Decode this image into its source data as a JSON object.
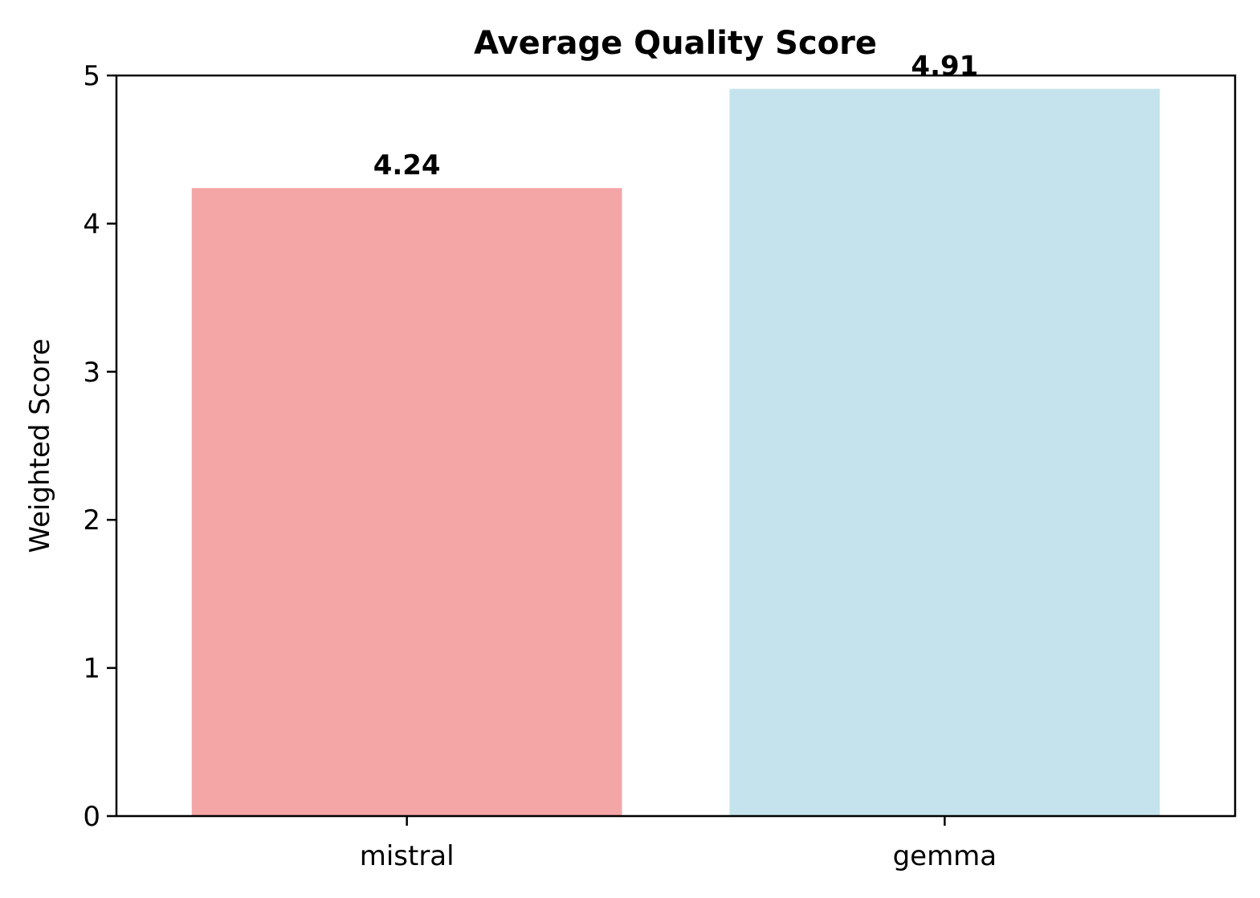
{
  "chart_data": {
    "type": "bar",
    "title": "Average Quality Score",
    "xlabel": "",
    "ylabel": "Weighted Score",
    "categories": [
      "mistral",
      "gemma"
    ],
    "values": [
      4.24,
      4.91
    ],
    "value_labels": [
      "4.24",
      "4.91"
    ],
    "colors": [
      "#f4a6a7",
      "#c5e3ed"
    ],
    "ylim": [
      0,
      5
    ],
    "yticks": [
      0,
      1,
      2,
      3,
      4,
      5
    ],
    "grid": false,
    "legend": "none"
  }
}
